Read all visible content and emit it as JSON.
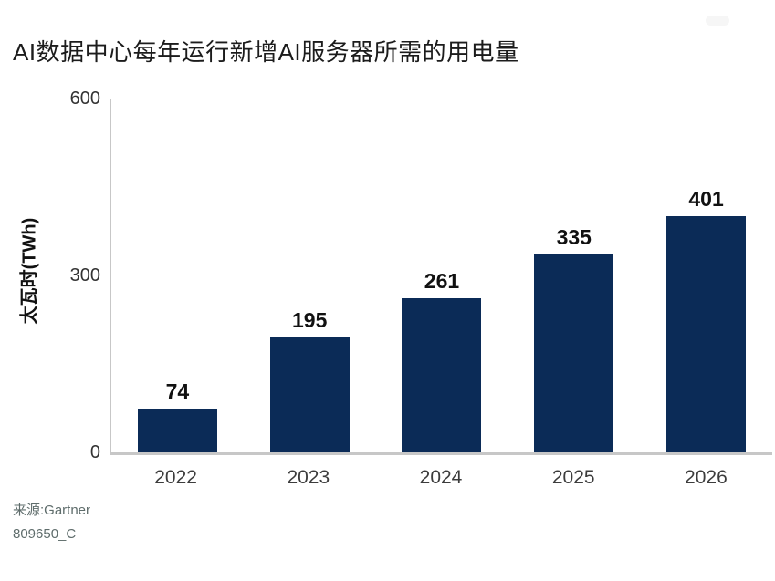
{
  "chart_data": {
    "type": "bar",
    "title": "AI数据中心每年运行新增AI服务器所需的用电量",
    "categories": [
      "2022",
      "2023",
      "2024",
      "2025",
      "2026"
    ],
    "values": [
      74,
      195,
      261,
      335,
      401
    ],
    "xlabel": "",
    "ylabel": "太瓦时(TWh)",
    "ylim": [
      0,
      600
    ],
    "yticks": [
      0,
      300,
      600
    ],
    "grid": false,
    "legend_position": "none",
    "bar_color": "#0b2b57",
    "axis_color": "#c7c7c7",
    "value_label_color": "#111111",
    "tick_label_color": "#333333"
  },
  "footer": {
    "source": "来源:Gartner",
    "doc_id": "809650_C"
  }
}
